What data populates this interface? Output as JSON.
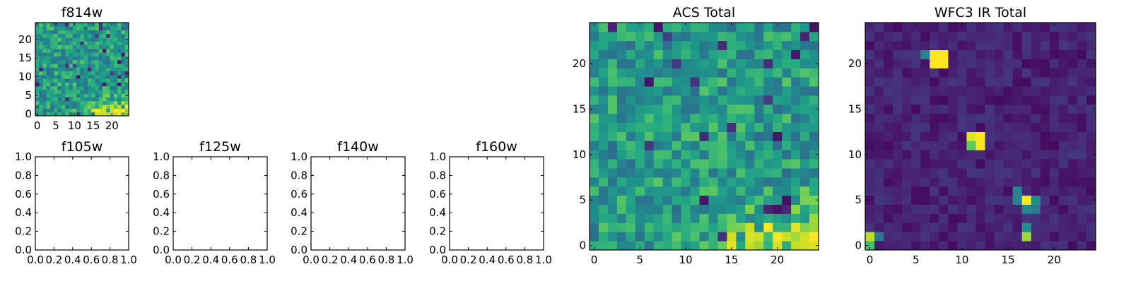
{
  "chart_data": [
    {
      "id": "f814w",
      "type": "heatmap",
      "title": "f814w",
      "size": 25,
      "colormap": "viridis",
      "xticks": [
        0,
        5,
        10,
        15,
        20
      ],
      "yticks": [
        0,
        5,
        10,
        15,
        20
      ],
      "xlim": [
        -0.5,
        24.5
      ],
      "ylim": [
        -0.5,
        24.5
      ],
      "note_values": "pixel values range 0–1; bright (yellow) concentration toward lower-right"
    },
    {
      "id": "f105w",
      "type": "empty",
      "title": "f105w",
      "xticks": [
        "0.0",
        "0.2",
        "0.4",
        "0.6",
        "0.8",
        "1.0"
      ],
      "yticks": [
        "0.0",
        "0.2",
        "0.4",
        "0.6",
        "0.8",
        "1.0"
      ],
      "xlim": [
        0,
        1
      ],
      "ylim": [
        0,
        1
      ]
    },
    {
      "id": "f125w",
      "type": "empty",
      "title": "f125w",
      "xticks": [
        "0.0",
        "0.2",
        "0.4",
        "0.6",
        "0.8",
        "1.0"
      ],
      "yticks": [
        "0.0",
        "0.2",
        "0.4",
        "0.6",
        "0.8",
        "1.0"
      ],
      "xlim": [
        0,
        1
      ],
      "ylim": [
        0,
        1
      ]
    },
    {
      "id": "f140w",
      "type": "empty",
      "title": "f140w",
      "xticks": [
        "0.0",
        "0.2",
        "0.4",
        "0.6",
        "0.8",
        "1.0"
      ],
      "yticks": [
        "0.0",
        "0.2",
        "0.4",
        "0.6",
        "0.8",
        "1.0"
      ],
      "xlim": [
        0,
        1
      ],
      "ylim": [
        0,
        1
      ]
    },
    {
      "id": "f160w",
      "type": "empty",
      "title": "f160w",
      "xticks": [
        "0.0",
        "0.2",
        "0.4",
        "0.6",
        "0.8",
        "1.0"
      ],
      "yticks": [
        "0.0",
        "0.2",
        "0.4",
        "0.6",
        "0.8",
        "1.0"
      ],
      "xlim": [
        0,
        1
      ],
      "ylim": [
        0,
        1
      ]
    },
    {
      "id": "acs",
      "type": "heatmap",
      "title": "ACS Total",
      "size": 25,
      "colormap": "viridis",
      "xticks": [
        0,
        5,
        10,
        15,
        20
      ],
      "yticks": [
        0,
        5,
        10,
        15,
        20
      ],
      "xlim": [
        -0.5,
        24.5
      ],
      "ylim": [
        -0.5,
        24.5
      ]
    },
    {
      "id": "wfc3",
      "type": "heatmap",
      "title": "WFC3 IR Total",
      "size": 25,
      "colormap": "viridis",
      "xticks": [
        0,
        5,
        10,
        15,
        20
      ],
      "yticks": [
        0,
        5,
        10,
        15,
        20
      ],
      "xlim": [
        -0.5,
        24.5
      ],
      "ylim": [
        -0.5,
        24.5
      ],
      "bright_sources": [
        {
          "x": 7,
          "y": 20,
          "value": 1.0
        },
        {
          "x": 8,
          "y": 20,
          "value": 1.0
        },
        {
          "x": 7,
          "y": 21,
          "value": 1.0
        },
        {
          "x": 8,
          "y": 21,
          "value": 1.0
        },
        {
          "x": 6,
          "y": 21,
          "value": 0.45
        },
        {
          "x": 11,
          "y": 12,
          "value": 0.95
        },
        {
          "x": 12,
          "y": 12,
          "value": 1.0
        },
        {
          "x": 11,
          "y": 11,
          "value": 0.75
        },
        {
          "x": 12,
          "y": 11,
          "value": 1.0
        },
        {
          "x": 17,
          "y": 5,
          "value": 1.0
        },
        {
          "x": 16,
          "y": 6,
          "value": 0.45
        },
        {
          "x": 16,
          "y": 5,
          "value": 0.45
        },
        {
          "x": 18,
          "y": 5,
          "value": 0.5
        },
        {
          "x": 17,
          "y": 4,
          "value": 0.45
        },
        {
          "x": 18,
          "y": 4,
          "value": 0.4
        },
        {
          "x": 17,
          "y": 1,
          "value": 0.85
        },
        {
          "x": 17,
          "y": 2,
          "value": 0.5
        },
        {
          "x": 0,
          "y": 1,
          "value": 0.9
        },
        {
          "x": 0,
          "y": 0,
          "value": 0.7
        },
        {
          "x": 1,
          "y": 1,
          "value": 0.4
        }
      ]
    }
  ]
}
